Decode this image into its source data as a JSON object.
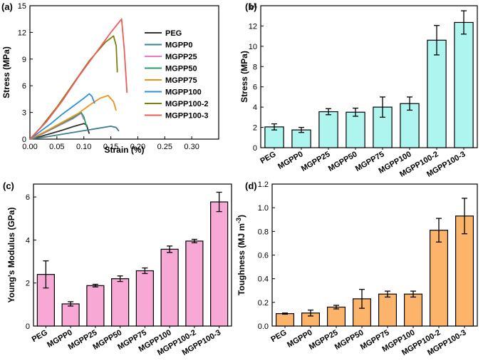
{
  "chart_data": [
    {
      "panel": "(a)",
      "type": "line",
      "xlabel": "Strain (%)",
      "ylabel": "Stress (MPa)",
      "xlim": [
        0,
        0.35
      ],
      "ylim": [
        0,
        15
      ],
      "xticks": [
        "0.00",
        "0.05",
        "0.10",
        "0.15",
        "0.20",
        "0.25",
        "0.30"
      ],
      "xtick_values": [
        0,
        0.05,
        0.1,
        0.15,
        0.2,
        0.25,
        0.3
      ],
      "yticks": [
        "0",
        "3",
        "6",
        "9",
        "12",
        "15"
      ],
      "ytick_values": [
        0,
        3,
        6,
        9,
        12,
        15
      ],
      "legend_position": "top-right",
      "series": [
        {
          "name": "PEG",
          "color": "#333333",
          "x": [
            0,
            0.02,
            0.04,
            0.06,
            0.08,
            0.1,
            0.105,
            0.11
          ],
          "y": [
            0,
            0.3,
            0.65,
            1.0,
            1.4,
            1.75,
            1.6,
            0.6
          ]
        },
        {
          "name": "MGPP0",
          "color": "#3d7f8a",
          "x": [
            0,
            0.03,
            0.06,
            0.09,
            0.12,
            0.15,
            0.16,
            0.165
          ],
          "y": [
            0,
            0.25,
            0.55,
            0.85,
            1.15,
            1.45,
            1.3,
            0.9
          ]
        },
        {
          "name": "MGPP25",
          "color": "#e879c8",
          "x": [
            0,
            0.02,
            0.04,
            0.06,
            0.08,
            0.095,
            0.1
          ],
          "y": [
            0,
            0.5,
            1.1,
            1.7,
            2.3,
            2.9,
            2.2
          ]
        },
        {
          "name": "MGPP50",
          "color": "#22a06b",
          "x": [
            0,
            0.02,
            0.04,
            0.06,
            0.08,
            0.095,
            0.1,
            0.105
          ],
          "y": [
            0,
            0.55,
            1.15,
            1.8,
            2.4,
            3.0,
            2.5,
            1.4
          ]
        },
        {
          "name": "MGPP75",
          "color": "#f0921a",
          "x": [
            0,
            0.03,
            0.06,
            0.09,
            0.11,
            0.13,
            0.145,
            0.155,
            0.16
          ],
          "y": [
            0,
            0.9,
            1.9,
            2.9,
            3.8,
            4.6,
            4.9,
            4.2,
            3.2
          ]
        },
        {
          "name": "MGPP100",
          "color": "#2e8fd8",
          "x": [
            0,
            0.02,
            0.04,
            0.06,
            0.08,
            0.1,
            0.11,
            0.115,
            0.12
          ],
          "y": [
            0,
            0.9,
            1.8,
            2.8,
            3.7,
            4.6,
            5.1,
            4.8,
            4.0
          ]
        },
        {
          "name": "MGPP100-2",
          "color": "#7f7f10",
          "x": [
            0,
            0.02,
            0.05,
            0.08,
            0.11,
            0.14,
            0.155,
            0.16,
            0.162
          ],
          "y": [
            0,
            1.3,
            3.6,
            6.2,
            8.8,
            10.9,
            11.6,
            10.5,
            7.5
          ]
        },
        {
          "name": "MGPP100-3",
          "color": "#ef5a5a",
          "x": [
            0,
            0.03,
            0.06,
            0.09,
            0.12,
            0.15,
            0.17,
            0.175,
            0.18
          ],
          "y": [
            0,
            1.9,
            4.3,
            7.0,
            9.5,
            12.0,
            13.5,
            10.0,
            5.2
          ]
        }
      ]
    },
    {
      "panel": "(b)",
      "type": "bar",
      "ylabel": "Stress (MPa)",
      "ylim": [
        0,
        14
      ],
      "yticks": [
        "0",
        "2",
        "4",
        "6",
        "8",
        "10",
        "12",
        "14"
      ],
      "ytick_values": [
        0,
        2,
        4,
        6,
        8,
        10,
        12,
        14
      ],
      "categories": [
        "PEG",
        "MGPP0",
        "MGPP25",
        "MGPP50",
        "MGPP75",
        "MGPP100",
        "MGPP100-2",
        "MGPP100-3"
      ],
      "values": [
        2.05,
        1.75,
        3.55,
        3.5,
        4.0,
        4.35,
        10.6,
        12.35
      ],
      "errors": [
        0.3,
        0.25,
        0.3,
        0.4,
        1.0,
        0.65,
        1.45,
        1.15
      ],
      "bar_color": "#aef5ef"
    },
    {
      "panel": "(c)",
      "type": "bar",
      "ylabel": "Young's Modulus (GPa)",
      "ylim": [
        0,
        6.6
      ],
      "yticks": [
        "0",
        "2",
        "4",
        "6"
      ],
      "ytick_values": [
        0,
        2,
        4,
        6
      ],
      "categories": [
        "PEG",
        "MGPP0",
        "MGPP25",
        "MGPP50",
        "MGPP75",
        "MGPP100",
        "MGPP100-2",
        "MGPP100-3"
      ],
      "values": [
        2.4,
        1.03,
        1.88,
        2.2,
        2.57,
        3.57,
        3.95,
        5.77
      ],
      "errors": [
        0.63,
        0.1,
        0.06,
        0.13,
        0.13,
        0.15,
        0.08,
        0.45
      ],
      "bar_color": "#f7a8d5"
    },
    {
      "panel": "(d)",
      "type": "bar",
      "ylabel": "Toughness (MJ m",
      "ylabel_sup": "-3",
      "ylabel_close": ")",
      "ylim": [
        0,
        1.2
      ],
      "yticks": [
        "0.0",
        "0.2",
        "0.4",
        "0.6",
        "0.8",
        "1.0",
        "1.2"
      ],
      "ytick_values": [
        0,
        0.2,
        0.4,
        0.6,
        0.8,
        1.0,
        1.2
      ],
      "categories": [
        "PEG",
        "MGPP0",
        "MGPP25",
        "MGPP50",
        "MGPP75",
        "MGPP100",
        "MGPP100-2",
        "MGPP100-3"
      ],
      "values": [
        0.105,
        0.11,
        0.16,
        0.23,
        0.27,
        0.27,
        0.81,
        0.93
      ],
      "errors": [
        0.005,
        0.025,
        0.015,
        0.08,
        0.025,
        0.025,
        0.1,
        0.15
      ],
      "bar_color": "#fbb46a"
    }
  ]
}
